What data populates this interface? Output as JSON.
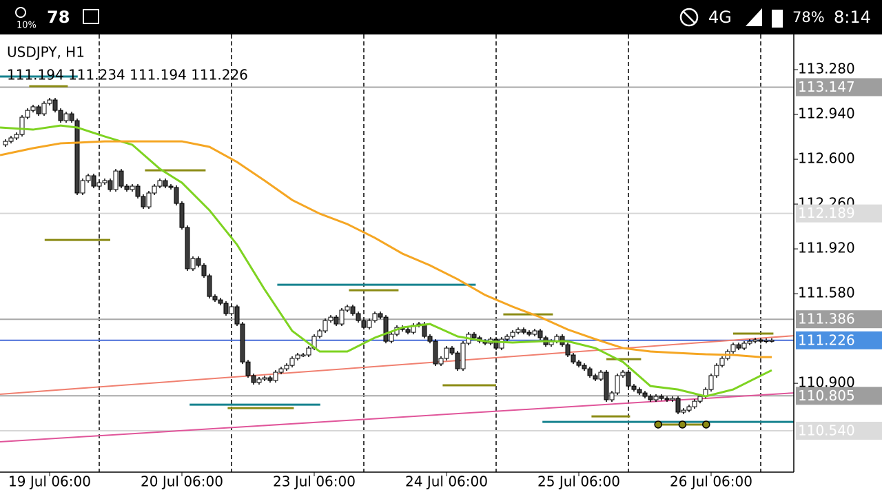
{
  "status_bar": {
    "weather": "10%",
    "temperature": "78",
    "network": "4G",
    "battery": "78%",
    "time": "8:14"
  },
  "chart_data": {
    "type": "candlestick",
    "symbol": "USDJPY, H1",
    "ohlc": "111.194 111.234 111.194 111.226",
    "up_color": "#ffffff",
    "down_color": "#3a3a3a",
    "border_color": "#000000",
    "first_open": 112.71,
    "closes": [
      112.736,
      112.762,
      112.788,
      112.919,
      112.971,
      112.998,
      112.945,
      113.024,
      113.05,
      112.971,
      112.893,
      112.945,
      112.893,
      112.344,
      112.438,
      112.475,
      112.396,
      112.422,
      112.438,
      112.37,
      112.511,
      112.396,
      112.37,
      112.396,
      112.318,
      112.239,
      112.344,
      112.396,
      112.438,
      112.396,
      112.386,
      112.265,
      112.082,
      111.769,
      111.847,
      111.795,
      111.716,
      111.559,
      111.533,
      111.507,
      111.429,
      111.481,
      111.35,
      111.062,
      110.958,
      110.906,
      110.932,
      110.942,
      110.921,
      110.984,
      111.01,
      111.036,
      111.089,
      111.115,
      111.115,
      111.167,
      111.256,
      111.298,
      111.376,
      111.402,
      111.35,
      111.455,
      111.481,
      111.429,
      111.376,
      111.324,
      111.376,
      111.429,
      111.402,
      111.219,
      111.272,
      111.324,
      111.308,
      111.287,
      111.34,
      111.35,
      111.256,
      111.219,
      111.047,
      111.089,
      111.167,
      111.13,
      111.01,
      111.204,
      111.272,
      111.246,
      111.219,
      111.204,
      111.235,
      111.167,
      111.235,
      111.256,
      111.287,
      111.308,
      111.287,
      111.272,
      111.298,
      111.246,
      111.193,
      111.219,
      111.256,
      111.193,
      111.115,
      111.062,
      111.036,
      111.01,
      110.958,
      110.932,
      110.984,
      110.775,
      110.827,
      110.958,
      110.984,
      110.879,
      110.853,
      110.827,
      110.801,
      110.775,
      110.801,
      110.785,
      110.775,
      110.785,
      110.681,
      110.696,
      110.722,
      110.764,
      110.801,
      110.853,
      110.958,
      111.036,
      111.089,
      111.141,
      111.193,
      111.167,
      111.204,
      111.219,
      111.23,
      111.219,
      111.225,
      111.226
    ],
    "xlim": [
      -1,
      143
    ],
    "ylim": [
      110.226,
      113.547
    ],
    "yticks": [
      {
        "value": 113.28,
        "label": "113.280"
      },
      {
        "value": 112.94,
        "label": "112.940"
      },
      {
        "value": 112.6,
        "label": "112.600"
      },
      {
        "value": 112.26,
        "label": "112.260"
      },
      {
        "value": 111.92,
        "label": "111.920"
      },
      {
        "value": 111.58,
        "label": "111.580"
      },
      {
        "value": 110.9,
        "label": "110.900"
      }
    ],
    "xticks": [
      {
        "value": 8,
        "label": "19 Jul 06:00"
      },
      {
        "value": 32,
        "label": "20 Jul 06:00"
      },
      {
        "value": 56,
        "label": "23 Jul 06:00"
      },
      {
        "value": 80,
        "label": "24 Jul 06:00"
      },
      {
        "value": 104,
        "label": "25 Jul 06:00"
      },
      {
        "value": 128,
        "label": "26 Jul 06:00"
      }
    ],
    "day_separators": [
      17,
      41,
      65,
      89,
      113,
      137
    ],
    "overlays": [
      {
        "color": "#7ed321",
        "x": [
          -1,
          5,
          10,
          13,
          18,
          23,
          28,
          32,
          37,
          42,
          47,
          52,
          57,
          62,
          67,
          72,
          77,
          82,
          87,
          92,
          97,
          102,
          107,
          112,
          117,
          122,
          127,
          132,
          137,
          139
        ],
        "values": [
          112.841,
          112.825,
          112.856,
          112.841,
          112.773,
          112.71,
          112.527,
          112.422,
          112.213,
          111.952,
          111.612,
          111.298,
          111.141,
          111.141,
          111.246,
          111.324,
          111.35,
          111.256,
          111.219,
          111.209,
          111.219,
          111.219,
          111.167,
          111.062,
          110.879,
          110.853,
          110.801,
          110.853,
          110.958,
          110.999
        ]
      },
      {
        "color": "#f5a623",
        "x": [
          -1,
          5,
          10,
          13,
          18,
          23,
          28,
          32,
          37,
          42,
          47,
          52,
          57,
          62,
          67,
          72,
          77,
          82,
          87,
          92,
          97,
          102,
          107,
          112,
          117,
          122,
          127,
          132,
          137,
          139
        ],
        "values": [
          112.631,
          112.684,
          112.721,
          112.726,
          112.736,
          112.736,
          112.736,
          112.736,
          112.694,
          112.579,
          112.438,
          112.291,
          112.187,
          112.108,
          112.004,
          111.884,
          111.795,
          111.69,
          111.57,
          111.481,
          111.402,
          111.308,
          111.235,
          111.167,
          111.141,
          111.13,
          111.12,
          111.115,
          111.099,
          111.099
        ]
      }
    ],
    "trendlines": [
      {
        "color": "#f08070",
        "x": [
          -1,
          143
        ],
        "values": [
          110.817,
          111.261
        ]
      },
      {
        "color": "#e0559a",
        "x": [
          -1,
          143
        ],
        "values": [
          110.456,
          110.827
        ]
      }
    ],
    "levels": [
      {
        "color": "#17838f",
        "x": [
          -1,
          13.1
        ],
        "value": 113.228
      },
      {
        "color": "#17838f",
        "x": [
          49.3,
          85.3
        ],
        "value": 111.648
      },
      {
        "color": "#17838f",
        "x": [
          33.4,
          57.1
        ],
        "value": 110.738
      },
      {
        "color": "#17838f",
        "x": [
          97.4,
          143
        ],
        "value": 110.607
      },
      {
        "color": "#8b8b14",
        "x": [
          4.3,
          11.3
        ],
        "value": 113.154
      },
      {
        "color": "#8b8b14",
        "x": [
          7.1,
          19
        ],
        "value": 111.988
      },
      {
        "color": "#8b8b14",
        "x": [
          25.3,
          36.3
        ],
        "value": 112.516
      },
      {
        "color": "#8b8b14",
        "x": [
          62.3,
          71.3
        ],
        "value": 111.606
      },
      {
        "color": "#8b8b14",
        "x": [
          40.3,
          52.3
        ],
        "value": 110.712
      },
      {
        "color": "#8b8b14",
        "x": [
          79.3,
          89
        ],
        "value": 110.885
      },
      {
        "color": "#8b8b14",
        "x": [
          90.3,
          99.3
        ],
        "value": 111.423
      },
      {
        "color": "#8b8b14",
        "x": [
          106.3,
          113.3
        ],
        "value": 110.649
      },
      {
        "color": "#8b8b14",
        "x": [
          109,
          115.3
        ],
        "value": 111.083
      },
      {
        "color": "#8b8b14",
        "x": [
          132,
          139.3
        ],
        "value": 111.277
      },
      {
        "color": "#8b8b14",
        "x": [
          117.8,
          127.3
        ],
        "value": 110.587
      }
    ],
    "level_dots": {
      "color": "#8b8b14",
      "x": [
        118.4,
        122.8,
        127.1
      ],
      "value": 110.587
    },
    "price_labels": [
      {
        "value": 113.147,
        "label": "113.147",
        "color": "#9e9e9e",
        "line_color": "#a8a8a8"
      },
      {
        "value": 112.189,
        "label": "112.189",
        "color": "#dcdcdc",
        "line_color": "#d6d6d6"
      },
      {
        "value": 111.386,
        "label": "111.386",
        "color": "#9e9e9e",
        "line_color": "#a8a8a8"
      },
      {
        "value": 110.805,
        "label": "110.805",
        "color": "#9e9e9e",
        "line_color": "#a8a8a8"
      },
      {
        "value": 110.54,
        "label": "110.540",
        "color": "#dcdcdc",
        "line_color": "#d6d6d6"
      },
      {
        "value": 111.226,
        "label": "111.226",
        "color": "#4a90e2",
        "line_color": "#4a6fd8"
      }
    ]
  }
}
